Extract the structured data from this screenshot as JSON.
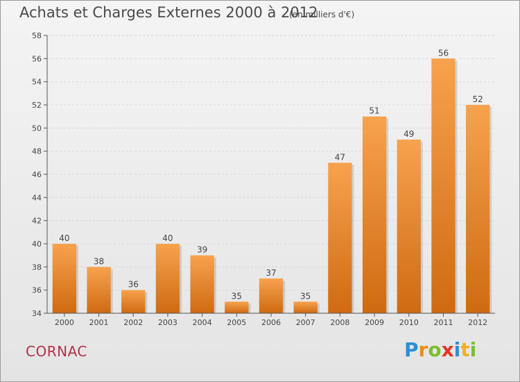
{
  "title": "Achats et Charges Externes 2000 à 2012",
  "subtitle": "(en milliers d'€)",
  "commune": "CORNAC",
  "logo": {
    "text": "Proxiti",
    "letters": [
      {
        "ch": "P",
        "color": "#2a8fd6"
      },
      {
        "ch": "r",
        "color": "#f08a1c"
      },
      {
        "ch": "o",
        "color": "#7bbf2a"
      },
      {
        "ch": "x",
        "color": "#e2342a"
      },
      {
        "ch": "i",
        "color": "#2a8fd6"
      },
      {
        "ch": "t",
        "color": "#f0b11c"
      },
      {
        "ch": "i",
        "color": "#7bbf2a"
      }
    ]
  },
  "colors": {
    "bar_top": "#f7a24e",
    "bar_bottom": "#cf6a12",
    "axis": "#555555",
    "grid": "#d8d8d8",
    "title": "#4a4a4a",
    "commune": "#b1344a"
  },
  "chart_data": {
    "type": "bar",
    "categories": [
      "2000",
      "2001",
      "2002",
      "2003",
      "2004",
      "2005",
      "2006",
      "2007",
      "2008",
      "2009",
      "2010",
      "2011",
      "2012"
    ],
    "values": [
      40,
      38,
      36,
      40,
      39,
      35,
      37,
      35,
      47,
      51,
      49,
      56,
      52
    ],
    "data_labels": [
      "40",
      "38",
      "36",
      "40",
      "39",
      "35",
      "37",
      "35",
      "47",
      "51",
      "49",
      "56",
      "52"
    ],
    "y_ticks": [
      34,
      36,
      38,
      40,
      42,
      44,
      46,
      48,
      50,
      52,
      54,
      56,
      58
    ],
    "ylim": [
      34,
      58
    ],
    "grid": true,
    "xlabel": "",
    "ylabel": ""
  }
}
